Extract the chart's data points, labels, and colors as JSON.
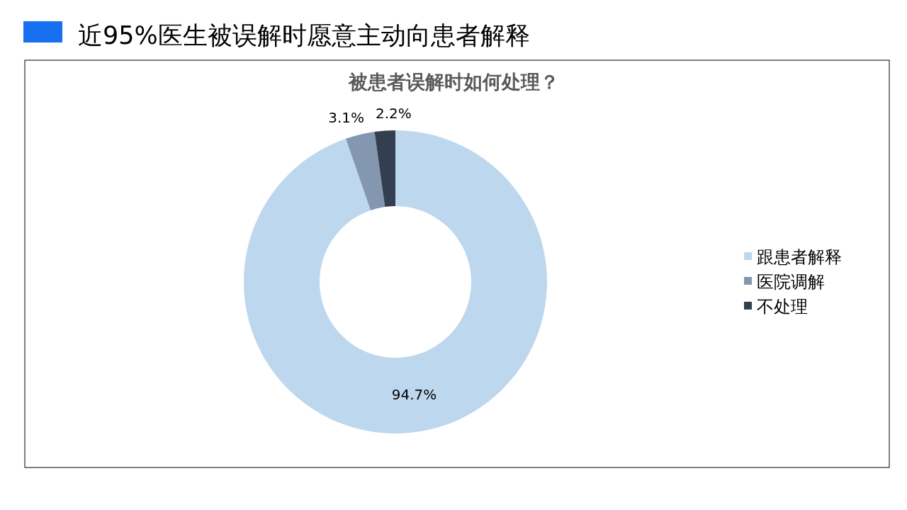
{
  "chart_data": {
    "type": "donut",
    "title": "近95%医生被误解时愿意主动向患者解释",
    "subtitle": "被患者误解时如何处理？",
    "categories": [
      "跟患者解释",
      "医院调解",
      "不处理"
    ],
    "values": [
      94.7,
      3.1,
      2.2
    ],
    "colors": [
      "#bdd7ee",
      "#8497b0",
      "#333f50"
    ],
    "value_labels": [
      "94.7%",
      "3.1%",
      "2.2%"
    ],
    "legend": "right"
  }
}
